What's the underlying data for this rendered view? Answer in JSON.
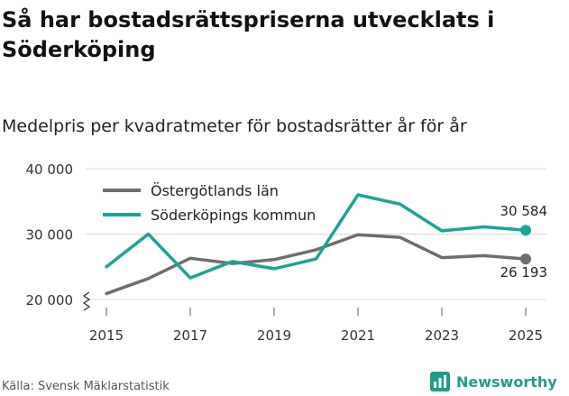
{
  "title": "Så har bostadsrättspriserna utvecklats i Söderköping",
  "subtitle": "Medelpris per kvadratmeter för bostadsrätter år för år",
  "source": "Källa: Svensk Mäklarstatistik",
  "brand": {
    "name": "Newsworthy",
    "icon": "newsworthy-logo-icon"
  },
  "colors": {
    "ostergotland": "#6e6e6e",
    "soderkoping": "#1aa39a",
    "grid": "#d9d9d9",
    "brand": "#1e9c8a"
  },
  "chart_data": {
    "type": "line",
    "title": "Så har bostadsrättspriserna utvecklats i Söderköping",
    "subtitle": "Medelpris per kvadratmeter för bostadsrätter år för år",
    "xlabel": "",
    "ylabel": "",
    "x": [
      2015,
      2016,
      2017,
      2018,
      2019,
      2020,
      2021,
      2022,
      2023,
      2024,
      2025
    ],
    "xticks": [
      "2015",
      "2017",
      "2019",
      "2021",
      "2023",
      "2025"
    ],
    "yticks": [
      "20 000",
      "30 000",
      "40 000"
    ],
    "ylim": [
      20000,
      40000
    ],
    "legend_position": "top-left",
    "series": [
      {
        "name": "Östergötlands län",
        "values": [
          20900,
          23200,
          26300,
          25500,
          26100,
          27600,
          29900,
          29500,
          26400,
          26700,
          26193
        ],
        "end_label": "26 193"
      },
      {
        "name": "Söderköpings kommun",
        "values": [
          25000,
          30000,
          23300,
          25800,
          24700,
          26200,
          36000,
          34600,
          30500,
          31100,
          30584
        ],
        "end_label": "30 584"
      }
    ]
  }
}
